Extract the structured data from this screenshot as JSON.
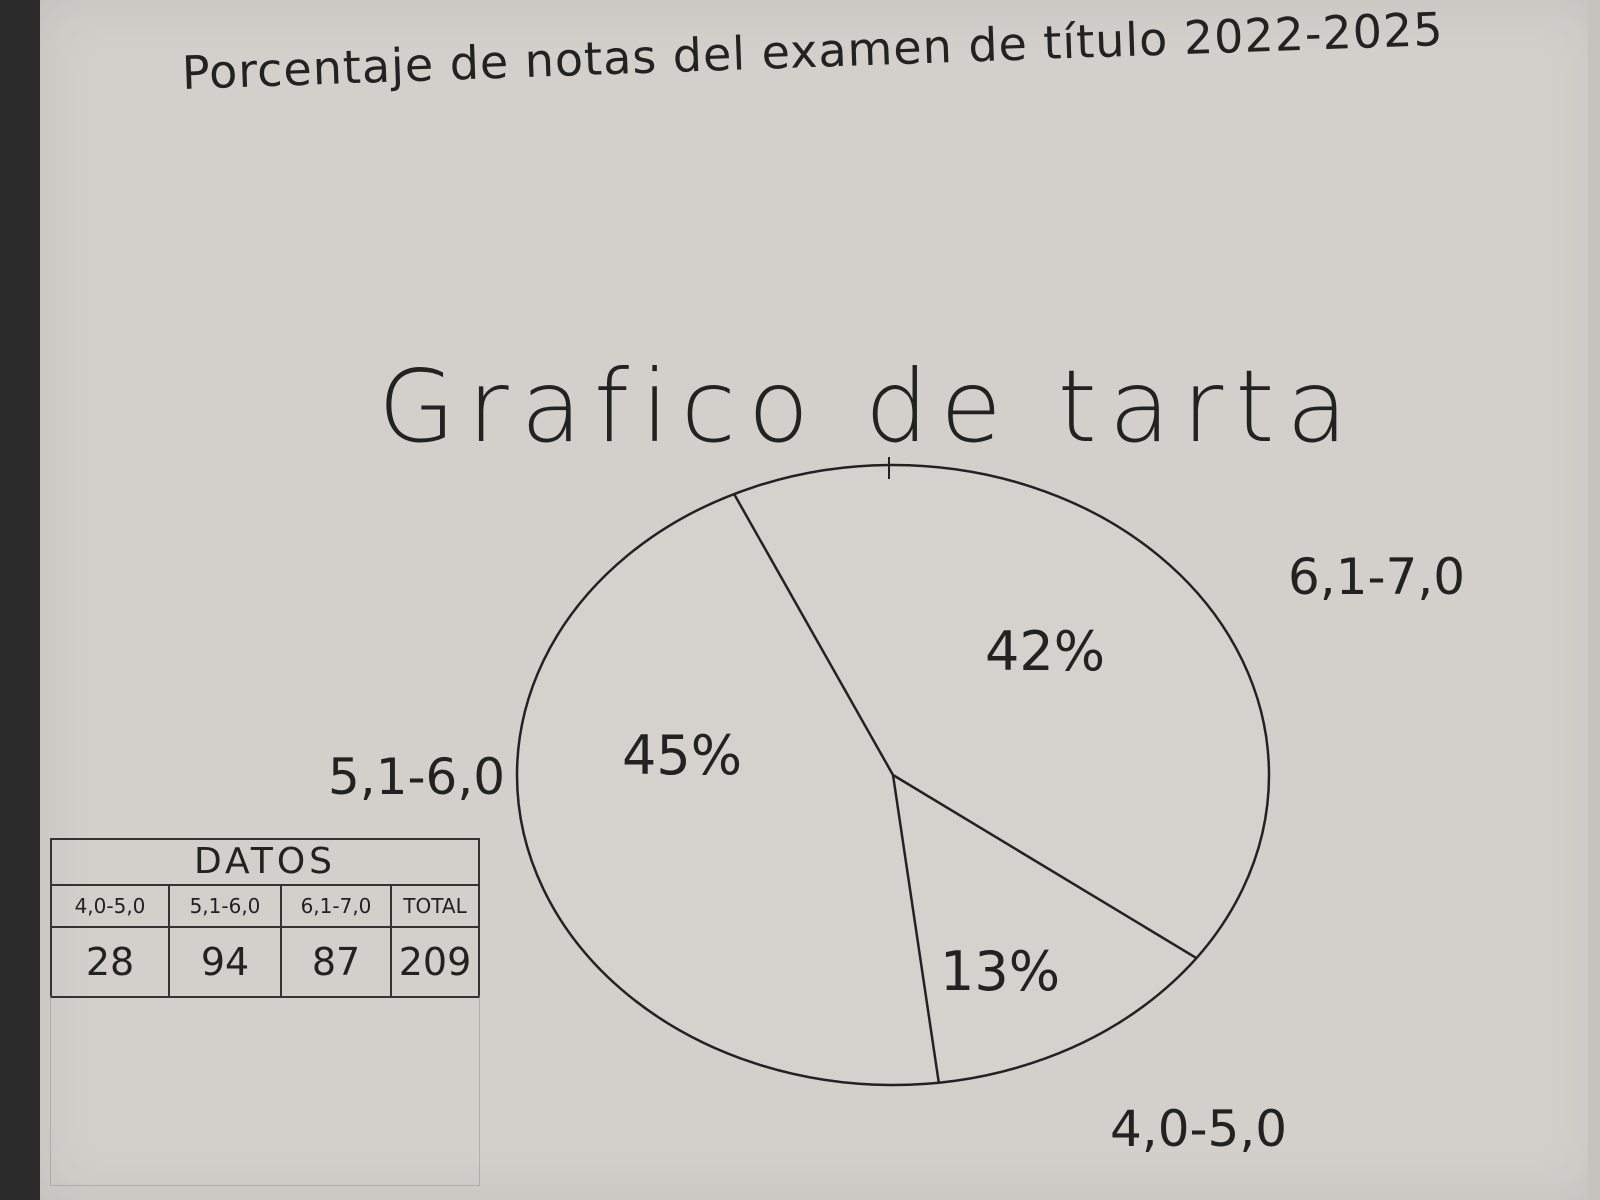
{
  "page": {
    "title": "Porcentaje de notas del examen de título 2022-2025"
  },
  "chart_data": {
    "type": "pie",
    "title": "Grafico de tarta",
    "slices": [
      {
        "label": "6,1-7,0",
        "percent": 42,
        "display": "42%"
      },
      {
        "label": "4,0-5,0",
        "percent": 13,
        "display": "13%"
      },
      {
        "label": "5,1-6,0",
        "percent": 45,
        "display": "45%"
      }
    ],
    "colors": {
      "ink": "#222222",
      "paper": "#d3d0cc",
      "slice_fill": "#d5d2ce"
    }
  },
  "table": {
    "title": "DATOS",
    "headers": [
      "4,0-5,0",
      "5,1-6,0",
      "6,1-7,0",
      "TOTAL"
    ],
    "values": [
      "28",
      "94",
      "87",
      "209"
    ]
  }
}
